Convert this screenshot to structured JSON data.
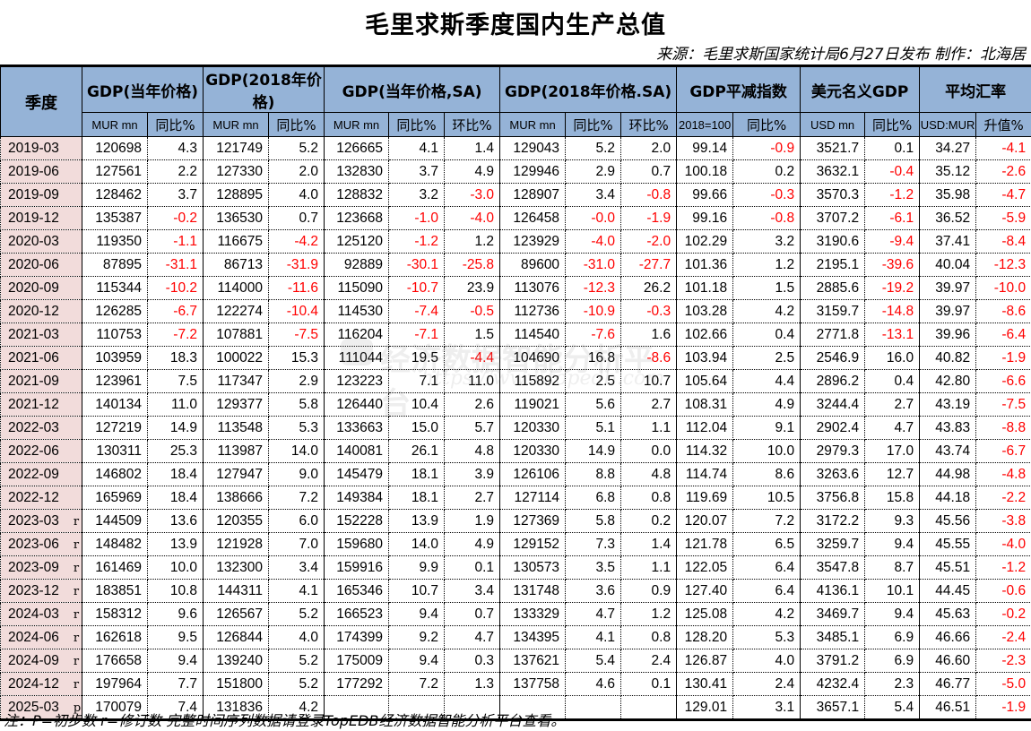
{
  "title": "毛里求斯季度国内生产总值",
  "source": "来源：毛里求斯国家统计局6月27日发布 制作：北海居",
  "header": {
    "season": "季度",
    "groups": [
      {
        "label": "GDP(当年价格)",
        "span": 2
      },
      {
        "label": "GDP(2018年价格)",
        "span": 2
      },
      {
        "label": "GDP(当年价格,SA)",
        "span": 3
      },
      {
        "label": "GDP(2018年价格.SA)",
        "span": 3
      },
      {
        "label": "GDP平减指数",
        "span": 2
      },
      {
        "label": "美元名义GDP",
        "span": 2
      },
      {
        "label": "平均汇率",
        "span": 2
      }
    ],
    "subheaders": [
      "MUR mn",
      "同比%",
      "MUR mn",
      "同比%",
      "MUR mn",
      "同比%",
      "环比%",
      "MUR mn",
      "同比%",
      "环比%",
      "2018=100",
      "同比%",
      "USD mn",
      "同比%",
      "USD:MUR",
      "升值%"
    ]
  },
  "rows": [
    {
      "q": "2019-03",
      "flag": "",
      "v": [
        "120698",
        "4.3",
        "121749",
        "5.2",
        "126665",
        "4.1",
        "1.4",
        "129043",
        "5.2",
        "2.0",
        "99.14",
        "-0.9",
        "3521.7",
        "0.1",
        "34.27",
        "-4.1"
      ]
    },
    {
      "q": "2019-06",
      "flag": "",
      "v": [
        "127561",
        "2.2",
        "127330",
        "2.0",
        "132830",
        "3.7",
        "4.9",
        "129946",
        "2.9",
        "0.7",
        "100.18",
        "0.2",
        "3632.1",
        "-0.4",
        "35.12",
        "-2.6"
      ]
    },
    {
      "q": "2019-09",
      "flag": "",
      "v": [
        "128462",
        "3.7",
        "128895",
        "4.0",
        "128832",
        "3.2",
        "-3.0",
        "128907",
        "3.4",
        "-0.8",
        "99.66",
        "-0.3",
        "3570.3",
        "-1.2",
        "35.98",
        "-4.7"
      ]
    },
    {
      "q": "2019-12",
      "flag": "",
      "v": [
        "135387",
        "-0.2",
        "136530",
        "0.7",
        "123668",
        "-1.0",
        "-4.0",
        "126458",
        "-0.0",
        "-1.9",
        "99.16",
        "-0.8",
        "3707.2",
        "-6.1",
        "36.52",
        "-5.9"
      ]
    },
    {
      "q": "2020-03",
      "flag": "",
      "v": [
        "119350",
        "-1.1",
        "116675",
        "-4.2",
        "125120",
        "-1.2",
        "1.2",
        "123929",
        "-4.0",
        "-2.0",
        "102.29",
        "3.2",
        "3190.6",
        "-9.4",
        "37.41",
        "-8.4"
      ]
    },
    {
      "q": "2020-06",
      "flag": "",
      "v": [
        "87895",
        "-31.1",
        "86713",
        "-31.9",
        "92889",
        "-30.1",
        "-25.8",
        "89600",
        "-31.0",
        "-27.7",
        "101.36",
        "1.2",
        "2195.1",
        "-39.6",
        "40.04",
        "-12.3"
      ]
    },
    {
      "q": "2020-09",
      "flag": "",
      "v": [
        "115344",
        "-10.2",
        "114000",
        "-11.6",
        "115090",
        "-10.7",
        "23.9",
        "113076",
        "-12.3",
        "26.2",
        "101.18",
        "1.5",
        "2885.6",
        "-19.2",
        "39.97",
        "-10.0"
      ]
    },
    {
      "q": "2020-12",
      "flag": "",
      "v": [
        "126285",
        "-6.7",
        "122274",
        "-10.4",
        "114530",
        "-7.4",
        "-0.5",
        "112736",
        "-10.9",
        "-0.3",
        "103.28",
        "4.2",
        "3159.7",
        "-14.8",
        "39.97",
        "-8.6"
      ]
    },
    {
      "q": "2021-03",
      "flag": "",
      "v": [
        "110753",
        "-7.2",
        "107881",
        "-7.5",
        "116204",
        "-7.1",
        "1.5",
        "114540",
        "-7.6",
        "1.6",
        "102.66",
        "0.4",
        "2771.8",
        "-13.1",
        "39.96",
        "-6.4"
      ]
    },
    {
      "q": "2021-06",
      "flag": "",
      "v": [
        "103959",
        "18.3",
        "100022",
        "15.3",
        "111044",
        "19.5",
        "-4.4",
        "104690",
        "16.8",
        "-8.6",
        "103.94",
        "2.5",
        "2546.9",
        "16.0",
        "40.82",
        "-1.9"
      ]
    },
    {
      "q": "2021-09",
      "flag": "",
      "v": [
        "123961",
        "7.5",
        "117347",
        "2.9",
        "123223",
        "7.1",
        "11.0",
        "115892",
        "2.5",
        "10.7",
        "105.64",
        "4.4",
        "2896.2",
        "0.4",
        "42.80",
        "-6.6"
      ]
    },
    {
      "q": "2021-12",
      "flag": "",
      "v": [
        "140134",
        "11.0",
        "129377",
        "5.8",
        "126440",
        "10.4",
        "2.6",
        "119021",
        "5.6",
        "2.7",
        "108.31",
        "4.9",
        "3244.4",
        "2.7",
        "43.19",
        "-7.5"
      ]
    },
    {
      "q": "2022-03",
      "flag": "",
      "v": [
        "127219",
        "14.9",
        "113548",
        "5.3",
        "133663",
        "15.0",
        "5.7",
        "120330",
        "5.1",
        "1.1",
        "112.04",
        "9.1",
        "2902.4",
        "4.7",
        "43.83",
        "-8.8"
      ]
    },
    {
      "q": "2022-06",
      "flag": "",
      "v": [
        "130311",
        "25.3",
        "113987",
        "14.0",
        "140081",
        "26.1",
        "4.8",
        "120330",
        "14.9",
        "0.0",
        "114.32",
        "10.0",
        "2979.3",
        "17.0",
        "43.74",
        "-6.7"
      ]
    },
    {
      "q": "2022-09",
      "flag": "",
      "v": [
        "146802",
        "18.4",
        "127947",
        "9.0",
        "145479",
        "18.1",
        "3.9",
        "126106",
        "8.8",
        "4.8",
        "114.74",
        "8.6",
        "3263.6",
        "12.7",
        "44.98",
        "-4.8"
      ]
    },
    {
      "q": "2022-12",
      "flag": "",
      "v": [
        "165969",
        "18.4",
        "138666",
        "7.2",
        "149384",
        "18.1",
        "2.7",
        "127114",
        "6.8",
        "0.8",
        "119.69",
        "10.5",
        "3756.8",
        "15.8",
        "44.18",
        "-2.2"
      ]
    },
    {
      "q": "2023-03",
      "flag": "r",
      "v": [
        "144509",
        "13.6",
        "120355",
        "6.0",
        "152228",
        "13.9",
        "1.9",
        "127369",
        "5.8",
        "0.2",
        "120.07",
        "7.2",
        "3172.2",
        "9.3",
        "45.56",
        "-3.8"
      ]
    },
    {
      "q": "2023-06",
      "flag": "r",
      "v": [
        "148482",
        "13.9",
        "121928",
        "7.0",
        "159680",
        "14.0",
        "4.9",
        "129152",
        "7.3",
        "1.4",
        "121.78",
        "6.5",
        "3259.7",
        "9.4",
        "45.55",
        "-4.0"
      ]
    },
    {
      "q": "2023-09",
      "flag": "r",
      "v": [
        "161469",
        "10.0",
        "132300",
        "3.4",
        "159916",
        "9.9",
        "0.1",
        "130573",
        "3.5",
        "1.1",
        "122.05",
        "6.4",
        "3547.8",
        "8.7",
        "45.51",
        "-1.2"
      ]
    },
    {
      "q": "2023-12",
      "flag": "r",
      "v": [
        "183851",
        "10.8",
        "144311",
        "4.1",
        "165346",
        "10.7",
        "3.4",
        "131748",
        "3.6",
        "0.9",
        "127.40",
        "6.4",
        "4136.1",
        "10.1",
        "44.45",
        "-0.6"
      ]
    },
    {
      "q": "2024-03",
      "flag": "r",
      "v": [
        "158312",
        "9.6",
        "126567",
        "5.2",
        "166523",
        "9.4",
        "0.7",
        "133329",
        "4.7",
        "1.2",
        "125.08",
        "4.2",
        "3469.7",
        "9.4",
        "45.63",
        "-0.2"
      ]
    },
    {
      "q": "2024-06",
      "flag": "r",
      "v": [
        "162618",
        "9.5",
        "126844",
        "4.0",
        "174399",
        "9.2",
        "4.7",
        "134395",
        "4.1",
        "0.8",
        "128.20",
        "5.3",
        "3485.1",
        "6.9",
        "46.66",
        "-2.4"
      ]
    },
    {
      "q": "2024-09",
      "flag": "r",
      "v": [
        "176658",
        "9.4",
        "139240",
        "5.2",
        "175009",
        "9.4",
        "0.3",
        "137621",
        "5.4",
        "2.4",
        "126.87",
        "4.0",
        "3791.2",
        "6.9",
        "46.60",
        "-2.3"
      ]
    },
    {
      "q": "2024-12",
      "flag": "r",
      "v": [
        "197964",
        "7.7",
        "151800",
        "5.2",
        "177292",
        "7.2",
        "1.3",
        "137758",
        "4.6",
        "0.1",
        "130.41",
        "2.4",
        "4232.4",
        "2.3",
        "46.77",
        "-5.0"
      ]
    },
    {
      "q": "2025-03",
      "flag": "p",
      "v": [
        "170079",
        "7.4",
        "131836",
        "4.2",
        "",
        "",
        "",
        "",
        "",
        "",
        "129.01",
        "3.1",
        "3657.1",
        "5.4",
        "46.51",
        "-1.9"
      ]
    }
  ],
  "note": "注：P=初步数 r=修订数 完整时间序列数据请登录TopEDB经济数据智能分析平台查看。",
  "watermark": {
    "text": "经济数据智能分析平台",
    "url": "https://www.topedb.com"
  },
  "colors": {
    "header_bg": "#95b3d7",
    "season_bg": "#f2dcdb",
    "negative": "#ff0000"
  }
}
